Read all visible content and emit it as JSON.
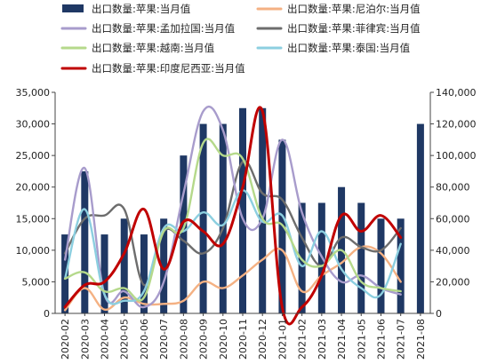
{
  "chart_data": {
    "type": "bar+line",
    "categories": [
      "2020-02",
      "2020-03",
      "2020-04",
      "2020-05",
      "2020-06",
      "2020-07",
      "2020-08",
      "2020-09",
      "2020-10",
      "2020-11",
      "2020-12",
      "2021-01",
      "2021-02",
      "2021-03",
      "2021-04",
      "2021-05",
      "2021-06",
      "2021-07",
      "2021-08"
    ],
    "y_left": {
      "min": 0,
      "max": 35000,
      "step": 5000,
      "ticks": [
        "0",
        "5,000",
        "10,000",
        "15,000",
        "20,000",
        "25,000",
        "30,000",
        "35,000"
      ]
    },
    "y_right": {
      "min": 0,
      "max": 140000,
      "step": 20000,
      "ticks": [
        "0",
        "20,000",
        "40,000",
        "60,000",
        "80,000",
        "100,000",
        "120,000",
        "140,000"
      ]
    },
    "bar_series": {
      "name": "出口数量:苹果:当月值",
      "color": "#1f3864",
      "axis": "right",
      "values": [
        50000,
        90000,
        50000,
        60000,
        50000,
        60000,
        100000,
        120000,
        120000,
        130000,
        130000,
        110000,
        70000,
        70000,
        80000,
        70000,
        60000,
        60000,
        120000
      ]
    },
    "line_series": [
      {
        "name": "出口数量:苹果:尼泊尔:当月值",
        "color": "#f4b183",
        "axis": "left",
        "values": [
          500,
          4000,
          600,
          2500,
          1500,
          1500,
          2000,
          5000,
          4000,
          6000,
          8500,
          10000,
          3500,
          6000,
          8000,
          10500,
          9500,
          5000,
          null
        ]
      },
      {
        "name": "出口数量:苹果:菲律宾:当月值",
        "color": "#6d6d6d",
        "axis": "left",
        "values": [
          9500,
          15000,
          15500,
          16500,
          4500,
          13000,
          11500,
          9500,
          13500,
          24000,
          19000,
          18000,
          12000,
          7500,
          12000,
          10500,
          10000,
          13500,
          null
        ]
      },
      {
        "name": "出口数量:苹果:孟加拉国:当月值",
        "color": "#a89ccc",
        "axis": "left",
        "values": [
          8500,
          23000,
          3000,
          3500,
          1000,
          5000,
          19000,
          32000,
          29000,
          15000,
          15000,
          27500,
          16000,
          9000,
          5000,
          6000,
          4000,
          3000,
          null
        ]
      },
      {
        "name": "出口数量:苹果:泰国:当月值",
        "color": "#8ccfe0",
        "axis": "left",
        "values": [
          5500,
          16500,
          3000,
          2000,
          3500,
          13500,
          13000,
          16000,
          14000,
          19500,
          14500,
          15500,
          7500,
          13000,
          7000,
          4000,
          3000,
          11000,
          null
        ]
      },
      {
        "name": "出口数量:苹果:越南:当月值",
        "color": "#b5d98b",
        "axis": "left",
        "values": [
          5500,
          6500,
          3500,
          4000,
          2500,
          13000,
          13500,
          27000,
          25000,
          24500,
          15000,
          14000,
          8500,
          7500,
          10000,
          5000,
          4000,
          3500,
          null
        ]
      },
      {
        "name": "出口数量:苹果:印度尼西亚:当月值",
        "color": "#c00000",
        "axis": "left",
        "values": [
          1000,
          4500,
          5000,
          9500,
          16500,
          7000,
          14500,
          13000,
          11000,
          20000,
          32000,
          1000,
          1000,
          6000,
          15500,
          13000,
          15500,
          12000,
          null
        ]
      }
    ],
    "legend": [
      {
        "label": "出口数量:苹果:当月值",
        "kind": "bar",
        "color": "#1f3864"
      },
      {
        "label": "出口数量:苹果:尼泊尔:当月值",
        "kind": "line",
        "color": "#f4b183"
      },
      {
        "label": "出口数量:苹果:孟加拉国:当月值",
        "kind": "line",
        "color": "#a89ccc"
      },
      {
        "label": "出口数量:苹果:菲律宾:当月值",
        "kind": "line",
        "color": "#6d6d6d"
      },
      {
        "label": "出口数量:苹果:越南:当月值",
        "kind": "line",
        "color": "#b5d98b"
      },
      {
        "label": "出口数量:苹果:泰国:当月值",
        "kind": "line",
        "color": "#8ccfe0"
      },
      {
        "label": "出口数量:苹果:印度尼西亚:当月值",
        "kind": "line",
        "color": "#c00000"
      }
    ],
    "legend_position": "top",
    "grid": false
  }
}
